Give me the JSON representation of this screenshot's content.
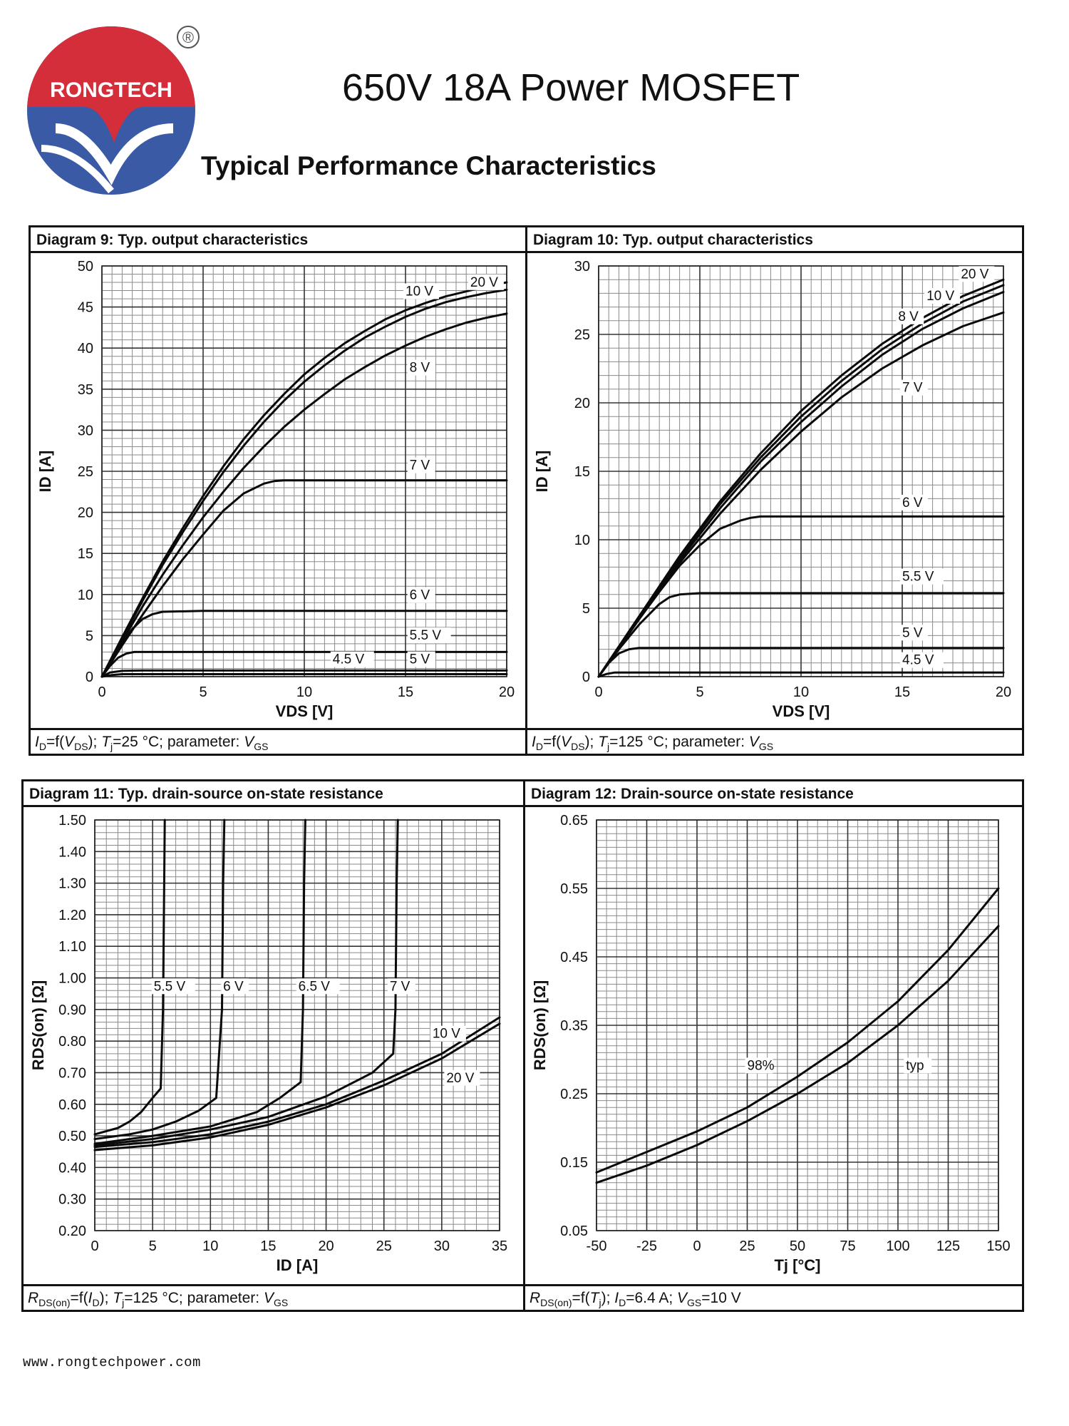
{
  "header": {
    "brand": "RONGTECH",
    "registered": "®",
    "title": "650V 18A Power MOSFET",
    "section": "Typical Performance Characteristics"
  },
  "footer": {
    "url": "www.rongtechpower.com"
  },
  "colors": {
    "logo_red": "#d42e3a",
    "logo_blue": "#3b5aa6",
    "ink": "#111111"
  },
  "chart_data": [
    {
      "type": "line",
      "title": "Diagram 9: Typ. output characteristics",
      "xlabel": "VDS [V]",
      "ylabel": "ID [A]",
      "xlim": [
        0,
        20
      ],
      "ylim": [
        0,
        50
      ],
      "xticks": [
        0,
        5,
        10,
        15,
        20
      ],
      "yticks": [
        0,
        5,
        10,
        15,
        20,
        25,
        30,
        35,
        40,
        45,
        50
      ],
      "caption": "ID=f(VDS); Tj=25 °C; parameter: VGS",
      "series": [
        {
          "name": "20 V",
          "x": [
            0,
            1,
            2,
            3,
            4,
            5,
            6,
            7,
            8,
            9,
            10,
            11,
            12,
            13,
            14,
            15,
            16,
            17,
            18,
            19,
            20
          ],
          "y": [
            0,
            4.8,
            9.5,
            14,
            18.1,
            22,
            25.6,
            28.9,
            31.8,
            34.4,
            36.8,
            38.8,
            40.6,
            42.1,
            43.5,
            44.6,
            45.5,
            46.3,
            46.9,
            47.5,
            48
          ]
        },
        {
          "name": "10 V",
          "x": [
            0,
            1,
            2,
            3,
            4,
            5,
            6,
            7,
            8,
            9,
            10,
            11,
            12,
            13,
            14,
            15,
            16,
            17,
            18,
            19,
            20
          ],
          "y": [
            0,
            4.6,
            9.2,
            13.6,
            17.6,
            21.4,
            24.9,
            28.1,
            31,
            33.6,
            35.9,
            37.9,
            39.7,
            41.3,
            42.6,
            43.8,
            44.8,
            45.6,
            46.2,
            46.7,
            47.1
          ]
        },
        {
          "name": "8 V",
          "x": [
            0,
            1,
            2,
            3,
            4,
            5,
            6,
            7,
            8,
            9,
            10,
            11,
            12,
            13,
            14,
            15,
            16,
            17,
            18,
            19,
            20
          ],
          "y": [
            0,
            4.3,
            8.5,
            12.4,
            16,
            19.4,
            22.5,
            25.4,
            28,
            30.4,
            32.5,
            34.4,
            36.2,
            37.7,
            39.1,
            40.3,
            41.4,
            42.3,
            43.1,
            43.7,
            44.2
          ]
        },
        {
          "name": "7 V",
          "x": [
            0,
            1,
            2,
            3,
            4,
            5,
            6,
            7,
            8,
            8.5,
            9,
            12,
            15,
            20
          ],
          "y": [
            0,
            3.8,
            7.5,
            11,
            14.3,
            17.3,
            20.2,
            22.3,
            23.5,
            23.8,
            23.9,
            23.9,
            23.9,
            23.9
          ]
        },
        {
          "name": "6 V",
          "x": [
            0,
            0.5,
            1,
            1.5,
            2,
            2.5,
            3,
            5,
            10,
            15,
            20
          ],
          "y": [
            0,
            2.3,
            4.2,
            5.8,
            7,
            7.6,
            7.9,
            8,
            8,
            8,
            8
          ]
        },
        {
          "name": "5.5 V",
          "x": [
            0,
            0.4,
            0.8,
            1.2,
            1.6,
            2,
            5,
            10,
            15,
            20
          ],
          "y": [
            0,
            1.3,
            2.3,
            2.8,
            3,
            3,
            3,
            3,
            3,
            3
          ]
        },
        {
          "name": "5 V",
          "x": [
            0,
            0.4,
            1,
            2,
            5,
            10,
            15,
            20
          ],
          "y": [
            0,
            0.5,
            0.7,
            0.75,
            0.75,
            0.75,
            0.75,
            0.75
          ]
        },
        {
          "name": "4.5 V",
          "x": [
            0,
            0.5,
            1,
            2,
            5,
            10,
            15,
            20
          ],
          "y": [
            0,
            0.2,
            0.3,
            0.3,
            0.3,
            0.3,
            0.3,
            0.3
          ]
        }
      ],
      "annotations": [
        "20 V",
        "10 V",
        "8 V",
        "7 V",
        "6 V",
        "5.5 V",
        "5 V",
        "4.5 V"
      ]
    },
    {
      "type": "line",
      "title": "Diagram 10: Typ. output characteristics",
      "xlabel": "VDS [V]",
      "ylabel": "ID [A]",
      "xlim": [
        0,
        20
      ],
      "ylim": [
        0,
        30
      ],
      "xticks": [
        0,
        5,
        10,
        15,
        20
      ],
      "yticks": [
        0,
        5,
        10,
        15,
        20,
        25,
        30
      ],
      "caption": "ID=f(VDS); Tj=125 °C; parameter: VGS",
      "series": [
        {
          "name": "20 V",
          "x": [
            0,
            2,
            4,
            6,
            8,
            10,
            12,
            14,
            16,
            18,
            20
          ],
          "y": [
            0,
            4.4,
            8.8,
            12.8,
            16.3,
            19.4,
            22,
            24.3,
            26.2,
            27.8,
            29
          ]
        },
        {
          "name": "10 V",
          "x": [
            0,
            2,
            4,
            6,
            8,
            10,
            12,
            14,
            16,
            18,
            20
          ],
          "y": [
            0,
            4.4,
            8.7,
            12.6,
            16,
            19,
            21.6,
            23.9,
            25.8,
            27.4,
            28.6
          ]
        },
        {
          "name": "8 V",
          "x": [
            0,
            2,
            4,
            6,
            8,
            10,
            12,
            14,
            16,
            18,
            20
          ],
          "y": [
            0,
            4.3,
            8.5,
            12.3,
            15.7,
            18.6,
            21.2,
            23.5,
            25.4,
            26.9,
            28.1
          ]
        },
        {
          "name": "7 V",
          "x": [
            0,
            2,
            4,
            6,
            8,
            10,
            12,
            14,
            16,
            18,
            20
          ],
          "y": [
            0,
            4.2,
            8.3,
            11.9,
            15.1,
            17.9,
            20.4,
            22.5,
            24.2,
            25.6,
            26.6
          ]
        },
        {
          "name": "6 V",
          "x": [
            0,
            1,
            2,
            3,
            4,
            5,
            6,
            7,
            7.5,
            8,
            10,
            15,
            20
          ],
          "y": [
            0,
            2.1,
            4.2,
            6.2,
            8.1,
            9.6,
            10.8,
            11.4,
            11.6,
            11.7,
            11.7,
            11.7,
            11.7
          ]
        },
        {
          "name": "5.5 V",
          "x": [
            0,
            1,
            2,
            3,
            3.5,
            4,
            5,
            10,
            15,
            20
          ],
          "y": [
            0,
            2,
            3.8,
            5.3,
            5.8,
            6,
            6.1,
            6.1,
            6.1,
            6.1
          ]
        },
        {
          "name": "5 V",
          "x": [
            0,
            0.5,
            1,
            1.5,
            2,
            5,
            10,
            15,
            20
          ],
          "y": [
            0,
            1,
            1.7,
            2,
            2.1,
            2.1,
            2.1,
            2.1,
            2.1
          ]
        },
        {
          "name": "4.5 V",
          "x": [
            0,
            0.4,
            0.8,
            1.2,
            5,
            10,
            15,
            20
          ],
          "y": [
            0,
            0.2,
            0.3,
            0.3,
            0.3,
            0.3,
            0.3,
            0.3
          ]
        }
      ],
      "annotations": [
        "20 V",
        "10 V",
        "8 V",
        "7 V",
        "6 V",
        "5.5 V",
        "5 V",
        "4.5 V"
      ]
    },
    {
      "type": "line",
      "title": "Diagram 11: Typ. drain-source on-state resistance",
      "xlabel": "ID [A]",
      "ylabel": "RDS(on) [Ω]",
      "xlim": [
        0,
        35
      ],
      "ylim": [
        0.2,
        1.5
      ],
      "xticks": [
        0,
        5,
        10,
        15,
        20,
        25,
        30,
        35
      ],
      "yticks": [
        0.2,
        0.3,
        0.4,
        0.5,
        0.6,
        0.7,
        0.8,
        0.9,
        1.0,
        1.1,
        1.2,
        1.3,
        1.4,
        1.5
      ],
      "caption": "RDS(on)=f(ID); Tj=125 °C; parameter: VGS",
      "series": [
        {
          "name": "5.5 V",
          "x": [
            0,
            2,
            3,
            4,
            5,
            5.7,
            5.9,
            6.0,
            6.05
          ],
          "y": [
            0.505,
            0.525,
            0.545,
            0.575,
            0.62,
            0.65,
            0.9,
            1.3,
            1.5
          ]
        },
        {
          "name": "6 V",
          "x": [
            0,
            3,
            5,
            7,
            9,
            10.5,
            11,
            11.1,
            11.2
          ],
          "y": [
            0.49,
            0.505,
            0.52,
            0.545,
            0.58,
            0.62,
            0.9,
            1.3,
            1.5
          ]
        },
        {
          "name": "6.5 V",
          "x": [
            0,
            5,
            10,
            14,
            16,
            17.8,
            18,
            18.1,
            18.2
          ],
          "y": [
            0.475,
            0.5,
            0.53,
            0.575,
            0.62,
            0.67,
            0.9,
            1.3,
            1.5
          ]
        },
        {
          "name": "7 V",
          "x": [
            0,
            5,
            10,
            15,
            20,
            24,
            25.8,
            26,
            26.1,
            26.2
          ],
          "y": [
            0.47,
            0.49,
            0.52,
            0.56,
            0.625,
            0.7,
            0.76,
            0.9,
            1.3,
            1.5
          ]
        },
        {
          "name": "10 V",
          "x": [
            0,
            5,
            10,
            15,
            20,
            25,
            30,
            35
          ],
          "y": [
            0.465,
            0.48,
            0.505,
            0.545,
            0.6,
            0.675,
            0.76,
            0.875
          ]
        },
        {
          "name": "20 V",
          "x": [
            0,
            5,
            10,
            15,
            20,
            25,
            30,
            35
          ],
          "y": [
            0.455,
            0.47,
            0.495,
            0.535,
            0.59,
            0.66,
            0.745,
            0.855
          ]
        }
      ],
      "annotations": [
        "5.5 V",
        "6 V",
        "6.5 V",
        "7 V",
        "10 V",
        "20 V"
      ]
    },
    {
      "type": "line",
      "title": "Diagram 12: Drain-source on-state resistance",
      "xlabel": "Tj [°C]",
      "ylabel": "RDS(on) [Ω]",
      "xlim": [
        -50,
        150
      ],
      "ylim": [
        0.05,
        0.65
      ],
      "xticks": [
        -50,
        -25,
        0,
        25,
        50,
        75,
        100,
        125,
        150
      ],
      "yticks": [
        0.05,
        0.15,
        0.25,
        0.35,
        0.45,
        0.55,
        0.65
      ],
      "caption": "RDS(on)=f(Tj); ID=6.4 A; VGS=10 V",
      "series": [
        {
          "name": "98%",
          "x": [
            -50,
            -25,
            0,
            25,
            50,
            75,
            100,
            125,
            150
          ],
          "y": [
            0.135,
            0.165,
            0.195,
            0.23,
            0.275,
            0.325,
            0.385,
            0.46,
            0.55
          ]
        },
        {
          "name": "typ",
          "x": [
            -50,
            -25,
            0,
            25,
            50,
            75,
            100,
            125,
            150
          ],
          "y": [
            0.12,
            0.145,
            0.175,
            0.21,
            0.25,
            0.295,
            0.35,
            0.415,
            0.495
          ]
        }
      ],
      "annotations": [
        "98%",
        "typ"
      ]
    }
  ]
}
